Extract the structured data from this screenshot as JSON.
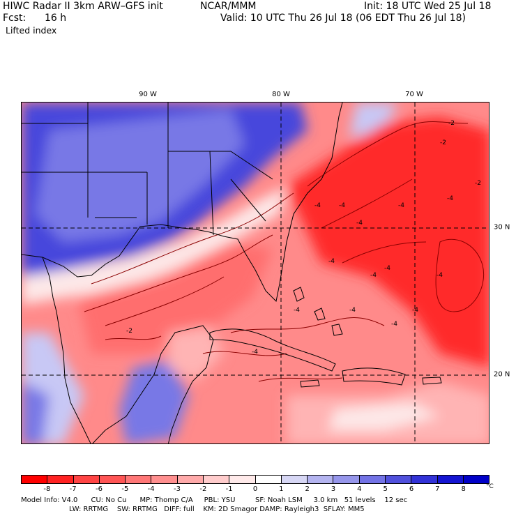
{
  "header": {
    "title_left": "HIWC Radar II 3km ARW–GFS init",
    "org": "NCAR/MMM",
    "init": "Init: 18 UTC Wed 25 Jul 18",
    "fcst_label": "Fcst:",
    "fcst_value": "16 h",
    "valid": "Valid: 10 UTC Thu 26 Jul 18 (06 EDT Thu 26 Jul 18)",
    "field": "Lifted index"
  },
  "map": {
    "longitude_labels": [
      "90 W",
      "80 W",
      "70 W"
    ],
    "latitude_labels": [
      "30 N",
      "20 N"
    ],
    "contour_labels": [
      "-2",
      "-2",
      "-4",
      "-4",
      "-4",
      "-4",
      "-4",
      "-2",
      "-4",
      "-4",
      "-4",
      "-4",
      "-4",
      "-4",
      "-4",
      "-2",
      "-4",
      "-4"
    ],
    "colors": {
      "strong_negative": "#ff2a2a",
      "negative": "#ff6e6e",
      "weak_negative": "#ffb4b4",
      "near_zero": "#fde8e8",
      "weak_positive": "#c8c8f5",
      "positive": "#7878e6",
      "strong_positive": "#4646dc",
      "coastline": "#000000",
      "contour": "#8b0000"
    }
  },
  "colorbar": {
    "labels": [
      "-8",
      "-7",
      "-6",
      "-5",
      "-4",
      "-3",
      "-2",
      "-1",
      "0",
      "1",
      "2",
      "3",
      "4",
      "5",
      "6",
      "7",
      "8"
    ],
    "unit": "°C",
    "colors": [
      "#ff0000",
      "#ff2222",
      "#ff4444",
      "#ff5555",
      "#ff7777",
      "#ff8f8f",
      "#ffaaaa",
      "#ffcccc",
      "#ffeaea",
      "#ffffff",
      "#d7d7f5",
      "#b4b4f0",
      "#9696eb",
      "#7373e6",
      "#5050dc",
      "#3232d7",
      "#1414d2",
      "#0000c8"
    ]
  },
  "footer": {
    "line1": "Model Info: V4.0      CU: No Cu      MP: Thomp C/A     PBL: YSU         SF: Noah LSM     3.0 km   51 levels    12 sec",
    "line2": "LW: RRTMG    SW: RRTMG   DIFF: full    KM: 2D Smagor DAMP: Rayleigh3  SFLAY: MM5"
  }
}
